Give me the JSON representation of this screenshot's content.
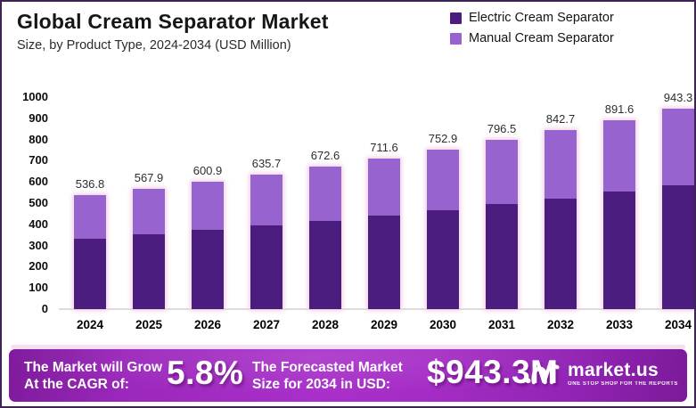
{
  "header": {
    "title": "Global Cream Separator Market",
    "subtitle": "Size, by Product Type, 2024-2034 (USD Million)"
  },
  "legend": [
    {
      "label": "Electric Cream Separator",
      "color": "#4a1d7f"
    },
    {
      "label": "Manual Cream Separator",
      "color": "#9763cf"
    }
  ],
  "chart_data": {
    "type": "bar",
    "stacked": true,
    "title": "Global Cream Separator Market Size, by Product Type, 2024-2034 (USD Million)",
    "categories": [
      "2024",
      "2025",
      "2026",
      "2027",
      "2028",
      "2029",
      "2030",
      "2031",
      "2032",
      "2033",
      "2034"
    ],
    "series": [
      {
        "name": "Electric Cream Separator",
        "color": "#4a1d7f",
        "values": [
          332.8,
          352.1,
          372.6,
          394.1,
          417.0,
          441.2,
          466.8,
          493.8,
          522.5,
          552.8,
          584.8
        ]
      },
      {
        "name": "Manual Cream Separator",
        "color": "#9763cf",
        "values": [
          204.0,
          215.8,
          228.3,
          241.6,
          255.6,
          270.4,
          286.1,
          302.7,
          320.2,
          338.8,
          358.5
        ]
      }
    ],
    "totals": [
      536.8,
      567.9,
      600.9,
      635.7,
      672.6,
      711.6,
      752.9,
      796.5,
      842.7,
      891.6,
      943.3
    ],
    "ylim": [
      0,
      1000
    ],
    "ytick_step": 100,
    "grid": false,
    "legend_position": "top-right"
  },
  "banner": {
    "cagr_label": "The Market will Grow\nAt the CAGR of:",
    "cagr_value": "5.8%",
    "forecast_label": "The Forecasted Market\nSize for 2034 in USD:",
    "forecast_value": "$943.3M",
    "brand_name": "market.us",
    "brand_tagline": "ONE STOP SHOP FOR THE REPORTS"
  },
  "colors": {
    "frame_border": "#3f2453",
    "banner_gradient_edge": "#7b1a99",
    "banner_gradient_center": "#a82fc9",
    "bar_halo": "#f0cbe4",
    "pink_strip": "#f6ddf0"
  }
}
